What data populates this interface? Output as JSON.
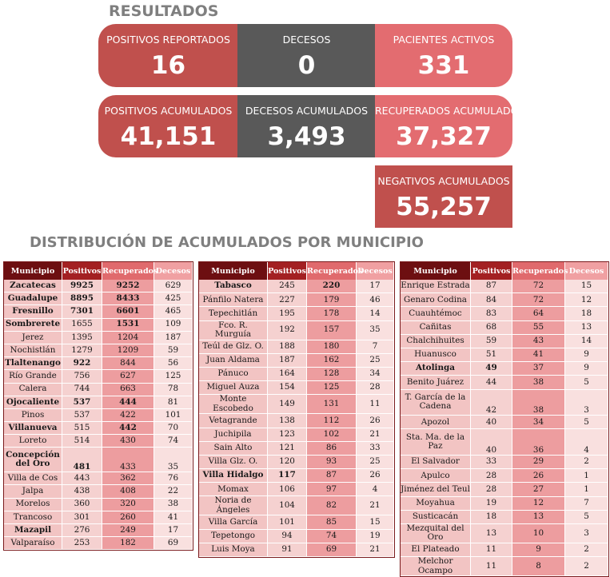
{
  "results": {
    "title": "RESULTADOS",
    "cards": {
      "positivos_reportados": {
        "label": "POSITIVOS REPORTADOS",
        "value": "16"
      },
      "decesos": {
        "label": "DECESOS",
        "value": "0"
      },
      "pacientes_activos": {
        "label": "PACIENTES ACTIVOS",
        "value": "331"
      },
      "positivos_acumulados": {
        "label": "POSITIVOS ACUMULADOS",
        "value": "41,151"
      },
      "decesos_acumulados": {
        "label": "DECESOS ACUMULADOS",
        "value": "3,493"
      },
      "recuperados_acumulados": {
        "label": "RECUPERADOS ACUMULADOS",
        "value": "37,327"
      },
      "negativos_acumulados": {
        "label": "NEGATIVOS ACUMULADOS",
        "value": "55,257"
      }
    }
  },
  "distribution": {
    "title": "DISTRIBUCIÓN DE ACUMULADOS POR MUNICIPIO",
    "headers": [
      "Municipio",
      "Positivos",
      "Recuperados",
      "Decesos"
    ],
    "tables": [
      [
        {
          "m": "Zacatecas",
          "p": "9925",
          "r": "9252",
          "d": "629",
          "bm": true,
          "bp": true,
          "br": true
        },
        {
          "m": "Guadalupe",
          "p": "8895",
          "r": "8433",
          "d": "425",
          "bm": true,
          "bp": true,
          "br": true
        },
        {
          "m": "Fresnillo",
          "p": "7301",
          "r": "6601",
          "d": "465",
          "bm": true,
          "bp": true,
          "br": true
        },
        {
          "m": "Sombrerete",
          "p": "1655",
          "r": "1531",
          "d": "109",
          "bm": true,
          "bp": false,
          "br": true
        },
        {
          "m": "Jerez",
          "p": "1395",
          "r": "1204",
          "d": "187"
        },
        {
          "m": "Nochistlán",
          "p": "1279",
          "r": "1209",
          "d": "59"
        },
        {
          "m": "Tlaltenango",
          "p": "922",
          "r": "844",
          "d": "56",
          "bm": true,
          "bp": true
        },
        {
          "m": "Río Grande",
          "p": "756",
          "r": "627",
          "d": "125"
        },
        {
          "m": "Calera",
          "p": "744",
          "r": "663",
          "d": "78"
        },
        {
          "m": "Ojocaliente",
          "p": "537",
          "r": "444",
          "d": "81",
          "bm": true,
          "bp": true,
          "br": true
        },
        {
          "m": "Pinos",
          "p": "537",
          "r": "422",
          "d": "101"
        },
        {
          "m": "Villanueva",
          "p": "515",
          "r": "442",
          "d": "70",
          "bm": true,
          "br": true
        },
        {
          "m": "Loreto",
          "p": "514",
          "r": "430",
          "d": "74"
        },
        {
          "m": "Concepción del Oro",
          "p": "481",
          "r": "433",
          "d": "35",
          "bm": true,
          "bp": true,
          "tall": true
        },
        {
          "m": "Villa de Cos",
          "p": "443",
          "r": "362",
          "d": "76"
        },
        {
          "m": "Jalpa",
          "p": "438",
          "r": "408",
          "d": "22"
        },
        {
          "m": "Morelos",
          "p": "360",
          "r": "320",
          "d": "38"
        },
        {
          "m": "Trancoso",
          "p": "301",
          "r": "260",
          "d": "41"
        },
        {
          "m": "Mazapil",
          "p": "276",
          "r": "249",
          "d": "17",
          "bm": true
        },
        {
          "m": "Valparaíso",
          "p": "253",
          "r": "182",
          "d": "69"
        }
      ],
      [
        {
          "m": "Tabasco",
          "p": "245",
          "r": "220",
          "d": "17",
          "bm": true,
          "br": true
        },
        {
          "m": "Pánfilo Natera",
          "p": "227",
          "r": "179",
          "d": "46"
        },
        {
          "m": "Tepechitlán",
          "p": "195",
          "r": "178",
          "d": "14"
        },
        {
          "m": "Fco. R. Murguía",
          "p": "192",
          "r": "157",
          "d": "35"
        },
        {
          "m": "Teúl de Glz. O.",
          "p": "188",
          "r": "180",
          "d": "7"
        },
        {
          "m": "Juan Aldama",
          "p": "187",
          "r": "162",
          "d": "25"
        },
        {
          "m": "Pánuco",
          "p": "164",
          "r": "128",
          "d": "34"
        },
        {
          "m": "Miguel Auza",
          "p": "154",
          "r": "125",
          "d": "28"
        },
        {
          "m": "Monte Escobedo",
          "p": "149",
          "r": "131",
          "d": "11"
        },
        {
          "m": "Vetagrande",
          "p": "138",
          "r": "112",
          "d": "26"
        },
        {
          "m": "Juchipila",
          "p": "123",
          "r": "102",
          "d": "21"
        },
        {
          "m": "Sain Alto",
          "p": "121",
          "r": "86",
          "d": "33"
        },
        {
          "m": "Villa Glz. O.",
          "p": "120",
          "r": "93",
          "d": "25"
        },
        {
          "m": "Villa Hidalgo",
          "p": "117",
          "r": "87",
          "d": "26",
          "bm": true,
          "bp": true
        },
        {
          "m": "Momax",
          "p": "106",
          "r": "97",
          "d": "4"
        },
        {
          "m": "Noria de Ángeles",
          "p": "104",
          "r": "82",
          "d": "21"
        },
        {
          "m": "Villa García",
          "p": "101",
          "r": "85",
          "d": "15"
        },
        {
          "m": "Tepetongo",
          "p": "94",
          "r": "74",
          "d": "19"
        },
        {
          "m": "Luis Moya",
          "p": "91",
          "r": "69",
          "d": "21"
        }
      ],
      [
        {
          "m": "Enrique Estrada",
          "p": "87",
          "r": "72",
          "d": "15"
        },
        {
          "m": "Genaro Codina",
          "p": "84",
          "r": "72",
          "d": "12"
        },
        {
          "m": "Cuauhtémoc",
          "p": "83",
          "r": "64",
          "d": "18"
        },
        {
          "m": "Cañitas",
          "p": "68",
          "r": "55",
          "d": "13"
        },
        {
          "m": "Chalchihuites",
          "p": "59",
          "r": "43",
          "d": "14"
        },
        {
          "m": "Huanusco",
          "p": "51",
          "r": "41",
          "d": "9"
        },
        {
          "m": "Atolinga",
          "p": "49",
          "r": "37",
          "d": "9",
          "bm": true,
          "bp": true
        },
        {
          "m": "Benito Juárez",
          "p": "44",
          "r": "38",
          "d": "5"
        },
        {
          "m": "T. García de la Cadena",
          "p": "42",
          "r": "38",
          "d": "3"
        },
        {
          "m": "Apozol",
          "p": "40",
          "r": "34",
          "d": "5"
        },
        {
          "m": "Sta. Ma. de la Paz",
          "p": "40",
          "r": "36",
          "d": "4"
        },
        {
          "m": "El Salvador",
          "p": "33",
          "r": "29",
          "d": "2"
        },
        {
          "m": "Apulco",
          "p": "28",
          "r": "26",
          "d": "1"
        },
        {
          "m": "Jiménez del Teul",
          "p": "28",
          "r": "27",
          "d": "1"
        },
        {
          "m": "Moyahua",
          "p": "19",
          "r": "12",
          "d": "7"
        },
        {
          "m": "Susticacán",
          "p": "18",
          "r": "13",
          "d": "5"
        },
        {
          "m": "Mezquital del Oro",
          "p": "13",
          "r": "10",
          "d": "3"
        },
        {
          "m": "El Plateado",
          "p": "11",
          "r": "9",
          "d": "2"
        },
        {
          "m": "Melchor Ocampo",
          "p": "11",
          "r": "8",
          "d": "2"
        }
      ]
    ]
  }
}
